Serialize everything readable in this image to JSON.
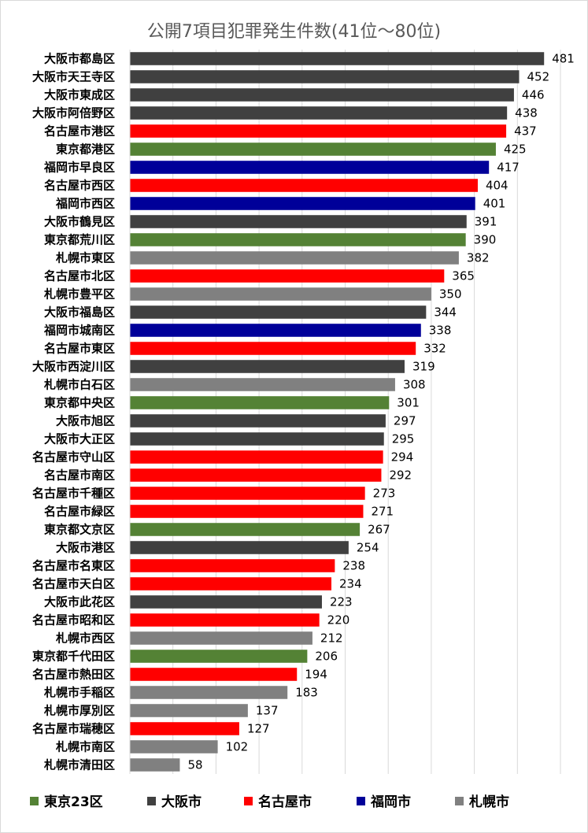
{
  "chart_data": {
    "type": "bar",
    "orientation": "horizontal",
    "title": "公開7項目犯罪発生件数(41位～80位)",
    "xlim": [
      0,
      500
    ],
    "grid": true,
    "legend_position": "bottom",
    "legend": [
      {
        "name": "東京23区",
        "color": "#548235"
      },
      {
        "name": "大阪市",
        "color": "#404040"
      },
      {
        "name": "名古屋市",
        "color": "#ff0000"
      },
      {
        "name": "福岡市",
        "color": "#000099"
      },
      {
        "name": "札幌市",
        "color": "#808080"
      }
    ],
    "categories": [
      "大阪市都島区",
      "大阪市天王寺区",
      "大阪市東成区",
      "大阪市阿倍野区",
      "名古屋市港区",
      "東京都港区",
      "福岡市早良区",
      "名古屋市西区",
      "福岡市西区",
      "大阪市鶴見区",
      "東京都荒川区",
      "札幌市東区",
      "名古屋市北区",
      "札幌市豊平区",
      "大阪市福島区",
      "福岡市城南区",
      "名古屋市東区",
      "大阪市西淀川区",
      "札幌市白石区",
      "東京都中央区",
      "大阪市旭区",
      "大阪市大正区",
      "名古屋市守山区",
      "名古屋市南区",
      "名古屋市千種区",
      "名古屋市緑区",
      "東京都文京区",
      "大阪市港区",
      "名古屋市名東区",
      "名古屋市天白区",
      "大阪市此花区",
      "名古屋市昭和区",
      "札幌市西区",
      "東京都千代田区",
      "名古屋市熱田区",
      "札幌市手稲区",
      "札幌市厚別区",
      "名古屋市瑞穂区",
      "札幌市南区",
      "札幌市清田区"
    ],
    "values": [
      481,
      452,
      446,
      438,
      437,
      425,
      417,
      404,
      401,
      391,
      390,
      382,
      365,
      350,
      344,
      338,
      332,
      319,
      308,
      301,
      297,
      295,
      294,
      292,
      273,
      271,
      267,
      254,
      238,
      234,
      223,
      220,
      212,
      206,
      194,
      183,
      137,
      127,
      102,
      58
    ],
    "groups": [
      "大阪市",
      "大阪市",
      "大阪市",
      "大阪市",
      "名古屋市",
      "東京23区",
      "福岡市",
      "名古屋市",
      "福岡市",
      "大阪市",
      "東京23区",
      "札幌市",
      "名古屋市",
      "札幌市",
      "大阪市",
      "福岡市",
      "名古屋市",
      "大阪市",
      "札幌市",
      "東京23区",
      "大阪市",
      "大阪市",
      "名古屋市",
      "名古屋市",
      "名古屋市",
      "名古屋市",
      "東京23区",
      "大阪市",
      "名古屋市",
      "名古屋市",
      "大阪市",
      "名古屋市",
      "札幌市",
      "東京23区",
      "名古屋市",
      "札幌市",
      "札幌市",
      "名古屋市",
      "札幌市",
      "札幌市"
    ]
  }
}
